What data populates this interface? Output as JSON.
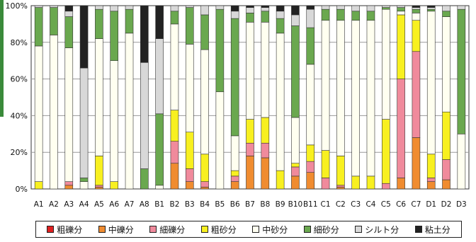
{
  "chart_data": {
    "type": "bar",
    "stacked": true,
    "categories": [
      "A1",
      "A2",
      "A3",
      "A4",
      "A5",
      "A6",
      "A7",
      "A8",
      "B1",
      "B2",
      "B3",
      "B4",
      "B5",
      "B6",
      "B7",
      "B8",
      "B9",
      "B10",
      "B11",
      "C1",
      "C2",
      "C3",
      "C4",
      "C5",
      "C6",
      "C7",
      "D1",
      "D2",
      "D3"
    ],
    "ylim": [
      0,
      100
    ],
    "yticks": [
      "0%",
      "20%",
      "40%",
      "60%",
      "80%",
      "100%"
    ],
    "grid": true,
    "legend": "bottom",
    "series": [
      {
        "name": "粗礫分",
        "color": "#e02020",
        "values": [
          0,
          0,
          0,
          0,
          0,
          0,
          0,
          0,
          0,
          0,
          0,
          0,
          0,
          0,
          0,
          0,
          0,
          0,
          0,
          0,
          0,
          0,
          0,
          0,
          0,
          0,
          0,
          0,
          0
        ]
      },
      {
        "name": "中礫分",
        "color": "#f08c30",
        "values": [
          0,
          0,
          2,
          0,
          1,
          0,
          0,
          0,
          0,
          14,
          4,
          1,
          0,
          4,
          18,
          17,
          0,
          7,
          9,
          0,
          1,
          0,
          0,
          0,
          6,
          28,
          4,
          5,
          0
        ]
      },
      {
        "name": "細礫分",
        "color": "#f08a9c",
        "values": [
          0,
          0,
          2,
          0,
          1,
          0,
          0,
          0,
          0,
          12,
          7,
          3,
          0,
          3,
          7,
          8,
          0,
          5,
          6,
          6,
          1,
          0,
          0,
          3,
          54,
          47,
          2,
          11,
          0
        ]
      },
      {
        "name": "粗砂分",
        "color": "#f8f020",
        "values": [
          4,
          0,
          0,
          0,
          16,
          4,
          0,
          0,
          0,
          17,
          20,
          15,
          0,
          3,
          13,
          14,
          10,
          2,
          9,
          15,
          16,
          7,
          7,
          35,
          35,
          17,
          13,
          26,
          0
        ]
      },
      {
        "name": "中砂分",
        "color": "#fffff0",
        "values": [
          74,
          84,
          73,
          4,
          64,
          66,
          85,
          0,
          2,
          47,
          48,
          57,
          53,
          19,
          53,
          52,
          75,
          25,
          44,
          71,
          74,
          85,
          85,
          60,
          2,
          4,
          78,
          52,
          30
        ]
      },
      {
        "name": "細砂分",
        "color": "#6aa84f",
        "values": [
          21,
          15,
          17,
          2,
          16,
          27,
          13,
          11,
          39,
          7,
          20,
          19,
          45,
          64,
          5,
          6,
          8,
          50,
          20,
          6,
          6,
          5,
          5,
          1,
          2,
          2,
          1,
          3,
          68
        ]
      },
      {
        "name": "シルト分",
        "color": "#d8d8d8",
        "values": [
          1,
          1,
          3,
          60,
          2,
          3,
          2,
          58,
          41,
          3,
          1,
          5,
          2,
          4,
          3,
          2,
          4,
          6,
          10,
          2,
          2,
          3,
          3,
          1,
          1,
          1,
          1,
          3,
          2
        ]
      },
      {
        "name": "粘土分",
        "color": "#222222",
        "values": [
          0,
          0,
          3,
          34,
          0,
          0,
          0,
          31,
          18,
          0,
          0,
          0,
          0,
          3,
          1,
          1,
          3,
          5,
          2,
          0,
          0,
          0,
          0,
          0,
          0,
          1,
          1,
          0,
          0
        ]
      }
    ]
  }
}
